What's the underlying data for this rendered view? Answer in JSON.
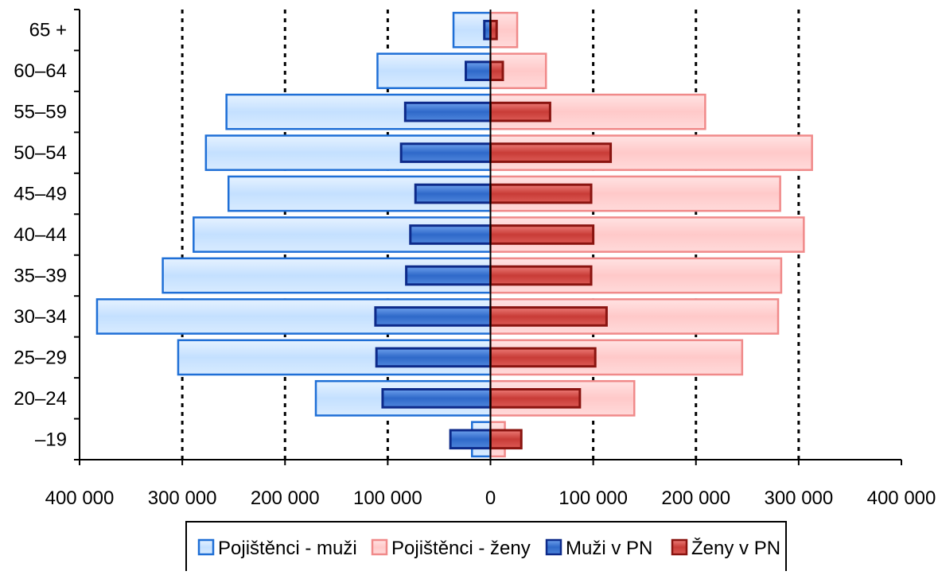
{
  "chart_data": {
    "type": "bar",
    "orientation": "horizontal",
    "layout": "population-pyramid",
    "categories": [
      "–19",
      "20–24",
      "25–29",
      "30–34",
      "35–39",
      "40–44",
      "45–49",
      "50–54",
      "55–59",
      "60–64",
      "65 +"
    ],
    "series": [
      {
        "name": "Pojištěnci - muži",
        "side": "left",
        "style": "wide",
        "fill": "#cfe6ff",
        "stroke": "#1f6fd6",
        "values": [
          18000,
          170000,
          304000,
          383000,
          319000,
          289000,
          255000,
          277000,
          257000,
          110000,
          36000
        ]
      },
      {
        "name": "Pojištěnci - ženy",
        "side": "right",
        "style": "wide",
        "fill": "#ffd1d1",
        "stroke": "#f08a8a",
        "values": [
          14000,
          140000,
          245000,
          280000,
          283000,
          305000,
          282000,
          313000,
          209000,
          54000,
          26000
        ]
      },
      {
        "name": "Muži v PN",
        "side": "left",
        "style": "narrow",
        "fill": "#3d7ad6",
        "stroke": "#0d2a8a",
        "values": [
          39000,
          105000,
          111000,
          112000,
          82000,
          78000,
          73000,
          87000,
          83000,
          24000,
          6000
        ]
      },
      {
        "name": "Ženy v PN",
        "side": "right",
        "style": "narrow",
        "fill": "#d64b46",
        "stroke": "#8a1410",
        "values": [
          30000,
          87000,
          102000,
          113000,
          98000,
          100000,
          98000,
          117000,
          58000,
          12000,
          6000
        ]
      }
    ],
    "xlim": [
      -400000,
      400000
    ],
    "xticks": [
      -400000,
      -300000,
      -200000,
      -100000,
      0,
      100000,
      200000,
      300000,
      400000
    ],
    "xtick_labels": [
      "400 000",
      "300 000",
      "200 000",
      "100 000",
      "0",
      "100 000",
      "200 000",
      "300 000",
      "400 000"
    ],
    "grid": "vertical-dotted",
    "legend": "bottom-center",
    "title": "",
    "xlabel": "",
    "ylabel": ""
  }
}
